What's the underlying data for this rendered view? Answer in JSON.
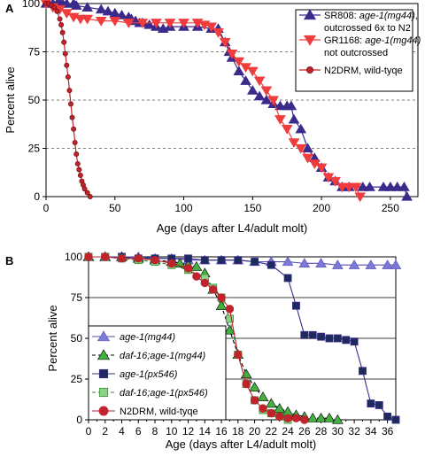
{
  "chart_data": [
    {
      "type": "line",
      "panel_label": "A",
      "xlabel": "Age (days after L4/adult molt)",
      "ylabel": "Percent alive",
      "xlim": [
        0,
        270
      ],
      "ylim": [
        0,
        100
      ],
      "x_ticks": [
        "0",
        "50",
        "100",
        "150",
        "200",
        "250"
      ],
      "y_ticks": [
        "0",
        "25",
        "50",
        "75",
        "100"
      ],
      "grid": "horizontal dashed at 25, 50, 75",
      "legend_position": "top-right",
      "series": [
        {
          "name_parts": [
            "SR808: ",
            "age-1(mg44)",
            ",",
            "outcrossed 6x to N2"
          ],
          "color": "#3b2a8c",
          "marker": "triangle-up",
          "x": [
            0,
            5,
            8,
            10,
            12,
            15,
            20,
            22,
            30,
            40,
            45,
            50,
            55,
            60,
            62,
            65,
            68,
            70,
            75,
            80,
            85,
            90,
            100,
            110,
            120,
            125,
            130,
            133,
            135,
            140,
            145,
            150,
            155,
            160,
            165,
            170,
            175,
            178,
            180,
            185,
            190,
            195,
            200,
            205,
            210,
            215,
            220,
            230,
            235,
            245,
            250,
            255,
            260,
            262
          ],
          "y": [
            100,
            100,
            100,
            100,
            100,
            100,
            100,
            99,
            98,
            97,
            96,
            95,
            94,
            93,
            92,
            91,
            90,
            90,
            89,
            88,
            87,
            88,
            88,
            88,
            87,
            87,
            80,
            75,
            72,
            65,
            60,
            55,
            52,
            50,
            48,
            47,
            47,
            47,
            40,
            35,
            25,
            20,
            15,
            10,
            8,
            5,
            5,
            5,
            5,
            5,
            5,
            5,
            5,
            0
          ]
        },
        {
          "name_parts": [
            "GR1168: ",
            "age-1(mg44)",
            "",
            "not outcrossed"
          ],
          "color": "#f03c3c",
          "marker": "triangle-down",
          "x": [
            0,
            5,
            10,
            15,
            20,
            25,
            30,
            40,
            50,
            60,
            70,
            80,
            90,
            100,
            110,
            115,
            120,
            125,
            130,
            135,
            140,
            145,
            150,
            155,
            160,
            165,
            170,
            175,
            180,
            185,
            190,
            195,
            200,
            205,
            210,
            215,
            220,
            225,
            228
          ],
          "y": [
            100,
            98,
            97,
            95,
            93,
            92,
            92,
            91,
            91,
            90,
            90,
            90,
            90,
            90,
            90,
            89,
            88,
            85,
            80,
            74,
            70,
            67,
            65,
            60,
            55,
            50,
            40,
            35,
            28,
            25,
            20,
            17,
            15,
            10,
            8,
            5,
            5,
            5,
            0
          ]
        },
        {
          "name_parts": [
            "N2DRM, wild-tyqe",
            "",
            "",
            ""
          ],
          "color": "#c0232c",
          "marker": "circle",
          "x": [
            0,
            2,
            4,
            6,
            8,
            10,
            11,
            12,
            13,
            14,
            15,
            16,
            17,
            18,
            19,
            20,
            21,
            22,
            23,
            24,
            25,
            26,
            27,
            28,
            30,
            32
          ],
          "y": [
            100,
            100,
            99,
            98,
            96,
            92,
            89,
            85,
            80,
            74,
            68,
            62,
            55,
            48,
            41,
            35,
            28,
            22,
            17,
            14,
            11,
            8,
            6,
            4,
            2,
            0
          ]
        }
      ]
    },
    {
      "type": "line",
      "panel_label": "B",
      "xlabel": "Age (days after L4/adult molt)",
      "ylabel": "Percent alive",
      "xlim": [
        0,
        37
      ],
      "ylim": [
        0,
        100
      ],
      "x_ticks": [
        "0",
        "2",
        "4",
        "6",
        "8",
        "10",
        "12",
        "14",
        "16",
        "18",
        "20",
        "22",
        "24",
        "26",
        "28",
        "30",
        "32",
        "34",
        "36"
      ],
      "y_ticks": [
        "0",
        "25",
        "50",
        "75",
        "100"
      ],
      "grid": "horizontal solid at 25, 50, 75, 100",
      "legend_position": "bottom-left",
      "series": [
        {
          "name_parts": [
            "age-1(mg44)",
            ""
          ],
          "color": "#7b7ad8",
          "stroke": "#5a4fb0",
          "marker": "triangle-up",
          "dash": "solid",
          "x": [
            0,
            2,
            4,
            6,
            8,
            10,
            12,
            14,
            16,
            18,
            20,
            22,
            24,
            26,
            28,
            30,
            32,
            34,
            36,
            37
          ],
          "y": [
            100,
            100,
            100,
            100,
            99,
            99,
            98,
            98,
            98,
            98,
            97,
            97,
            97,
            96,
            96,
            95,
            95,
            95,
            95,
            95
          ]
        },
        {
          "name_parts": [
            "daf-16;age-1(mg44)",
            ""
          ],
          "color": "#44b040",
          "stroke": "#000000",
          "marker": "triangle-up",
          "dash": "dashed",
          "x": [
            0,
            2,
            4,
            6,
            8,
            10,
            11,
            12,
            13,
            14,
            15,
            16,
            17,
            18,
            19,
            20,
            21,
            22,
            23,
            24,
            25,
            26,
            27,
            28,
            29,
            30
          ],
          "y": [
            100,
            100,
            100,
            99,
            98,
            97,
            96,
            95,
            94,
            90,
            80,
            70,
            55,
            40,
            28,
            20,
            14,
            10,
            7,
            5,
            3,
            2,
            1,
            1,
            1,
            0
          ]
        },
        {
          "name_parts": [
            "age-1(px546)",
            ""
          ],
          "color": "#1c2a5c",
          "stroke": "#3b2a8c",
          "marker": "square",
          "dash": "solid",
          "x": [
            0,
            2,
            4,
            6,
            8,
            10,
            12,
            14,
            16,
            18,
            20,
            22,
            24,
            25,
            26,
            27,
            28,
            29,
            30,
            31,
            32,
            33,
            34,
            35,
            36,
            37
          ],
          "y": [
            100,
            100,
            100,
            99,
            99,
            99,
            99,
            98,
            98,
            98,
            97,
            95,
            87,
            70,
            52,
            52,
            51,
            50,
            50,
            49,
            48,
            30,
            10,
            9,
            2,
            0
          ]
        },
        {
          "name_parts": [
            "daf-16;age-1(px546)",
            ""
          ],
          "color": "#8ed08a",
          "stroke": "#2f8f2f",
          "marker": "square",
          "dash": "dashed",
          "x": [
            0,
            2,
            4,
            6,
            8,
            10,
            12,
            14,
            15,
            16,
            17,
            18,
            19,
            20,
            21,
            22,
            23,
            24
          ],
          "y": [
            100,
            100,
            99,
            98,
            97,
            95,
            92,
            87,
            81,
            75,
            62,
            40,
            22,
            12,
            6,
            4,
            2,
            0
          ]
        },
        {
          "name_parts": [
            "N2DRM, wild-tyqe",
            ""
          ],
          "color": "#c0232c",
          "stroke": "#c0232c",
          "marker": "circle",
          "dash": "solid",
          "x": [
            0,
            2,
            4,
            6,
            8,
            10,
            12,
            13,
            14,
            15,
            16,
            17,
            18,
            19,
            20,
            21,
            22,
            23,
            24,
            25,
            26
          ],
          "y": [
            100,
            100,
            99,
            99,
            98,
            96,
            93,
            88,
            84,
            80,
            75,
            68,
            40,
            22,
            12,
            7,
            4,
            2,
            1,
            1,
            0
          ]
        }
      ]
    }
  ]
}
